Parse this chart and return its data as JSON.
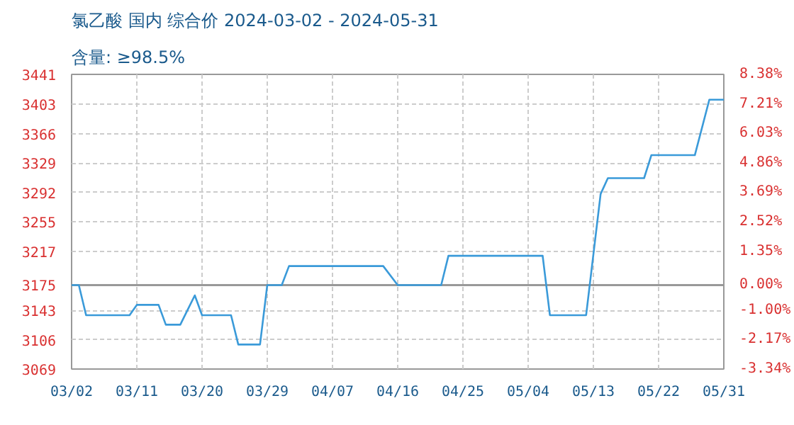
{
  "chart_data": {
    "type": "line",
    "title": "氯乙酸 国内 综合价 2024-03-02 - 2024-05-31",
    "subtitle": "含量: ≥98.5%",
    "series": [
      {
        "color": "#3a9ad9",
        "x": [
          "2024-03-02",
          "2024-03-03",
          "2024-03-04",
          "2024-03-10",
          "2024-03-11",
          "2024-03-14",
          "2024-03-15",
          "2024-03-17",
          "2024-03-19",
          "2024-03-20",
          "2024-03-24",
          "2024-03-25",
          "2024-03-28",
          "2024-03-29",
          "2024-03-31",
          "2024-04-01",
          "2024-04-14",
          "2024-04-16",
          "2024-04-22",
          "2024-04-23",
          "2024-05-06",
          "2024-05-07",
          "2024-05-12",
          "2024-05-14",
          "2024-05-15",
          "2024-05-20",
          "2024-05-21",
          "2024-05-27",
          "2024-05-29",
          "2024-05-31"
        ],
        "values": [
          3175,
          3175,
          3137,
          3137,
          3150,
          3150,
          3125,
          3125,
          3162,
          3137,
          3137,
          3100,
          3100,
          3175,
          3175,
          3199,
          3199,
          3175,
          3175,
          3212,
          3212,
          3137,
          3137,
          3290,
          3310,
          3310,
          3339,
          3339,
          3409,
          3409
        ]
      }
    ],
    "xlim": [
      "2024-03-02",
      "2024-05-31"
    ],
    "xticks": [
      {
        "value": "2024-03-02",
        "label": "03/02"
      },
      {
        "value": "2024-03-11",
        "label": "03/11"
      },
      {
        "value": "2024-03-20",
        "label": "03/20"
      },
      {
        "value": "2024-03-29",
        "label": "03/29"
      },
      {
        "value": "2024-04-07",
        "label": "04/07"
      },
      {
        "value": "2024-04-16",
        "label": "04/16"
      },
      {
        "value": "2024-04-25",
        "label": "04/25"
      },
      {
        "value": "2024-05-04",
        "label": "05/04"
      },
      {
        "value": "2024-05-13",
        "label": "05/13"
      },
      {
        "value": "2024-05-22",
        "label": "05/22"
      },
      {
        "value": "2024-05-31",
        "label": "05/31"
      }
    ],
    "ylim": [
      3069,
      3441
    ],
    "yticks": [
      3069,
      3106,
      3143,
      3175,
      3217,
      3255,
      3292,
      3329,
      3366,
      3403,
      3441
    ],
    "y2lim": [
      -3.34,
      8.38
    ],
    "y2ticks": [
      {
        "value": -3.34,
        "label": "-3.34%"
      },
      {
        "value": -2.17,
        "label": "-2.17%"
      },
      {
        "value": -1.0,
        "label": "-1.00%"
      },
      {
        "value": 0,
        "label": "0.00%"
      },
      {
        "value": 1.35,
        "label": "1.35%"
      },
      {
        "value": 2.52,
        "label": "2.52%"
      },
      {
        "value": 3.69,
        "label": "3.69%"
      },
      {
        "value": 4.86,
        "label": "4.86%"
      },
      {
        "value": 6.03,
        "label": "6.03%"
      },
      {
        "value": 7.21,
        "label": "7.21%"
      },
      {
        "value": 8.38,
        "label": "8.38%"
      }
    ],
    "ref_lines": [
      {
        "axis": "y",
        "value": 3175,
        "color": "#999999"
      }
    ],
    "grid": true,
    "marker": "none",
    "line_style": "solid"
  }
}
